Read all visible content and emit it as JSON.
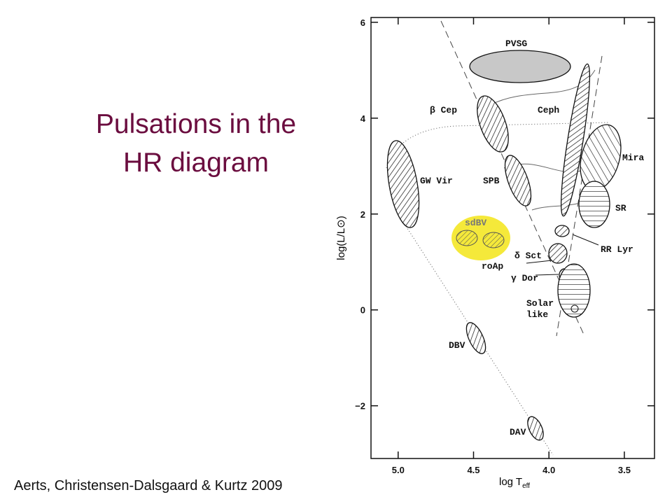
{
  "title": [
    "Pulsations in the",
    "HR diagram"
  ],
  "citation": "Aerts, Christensen-Dalsgaard & Kurtz  2009",
  "chart_data": {
    "type": "hr-diagram",
    "xlabel": "log T",
    "xlabel_sub": "eff",
    "ylabel": "log(L/L⊙)",
    "xlim": [
      5.18,
      3.3
    ],
    "ylim": [
      -3.1,
      6.1
    ],
    "xticks": [
      {
        "value": 5,
        "label": "5.0"
      },
      4.5,
      {
        "value": 4,
        "label": "4.0"
      },
      3.5
    ],
    "yticks": [
      {
        "value": -2,
        "label": "−2"
      },
      0,
      2,
      4,
      6
    ],
    "regions": [
      "PVSG",
      "β Cep",
      "Ceph",
      "Mira",
      "GW Vir",
      "SPB",
      "SR",
      "sdBV",
      "RR Lyr",
      "δ Sct",
      "roAp",
      "γ Dor",
      "Solar",
      "like",
      "DBV",
      "DAV"
    ]
  }
}
